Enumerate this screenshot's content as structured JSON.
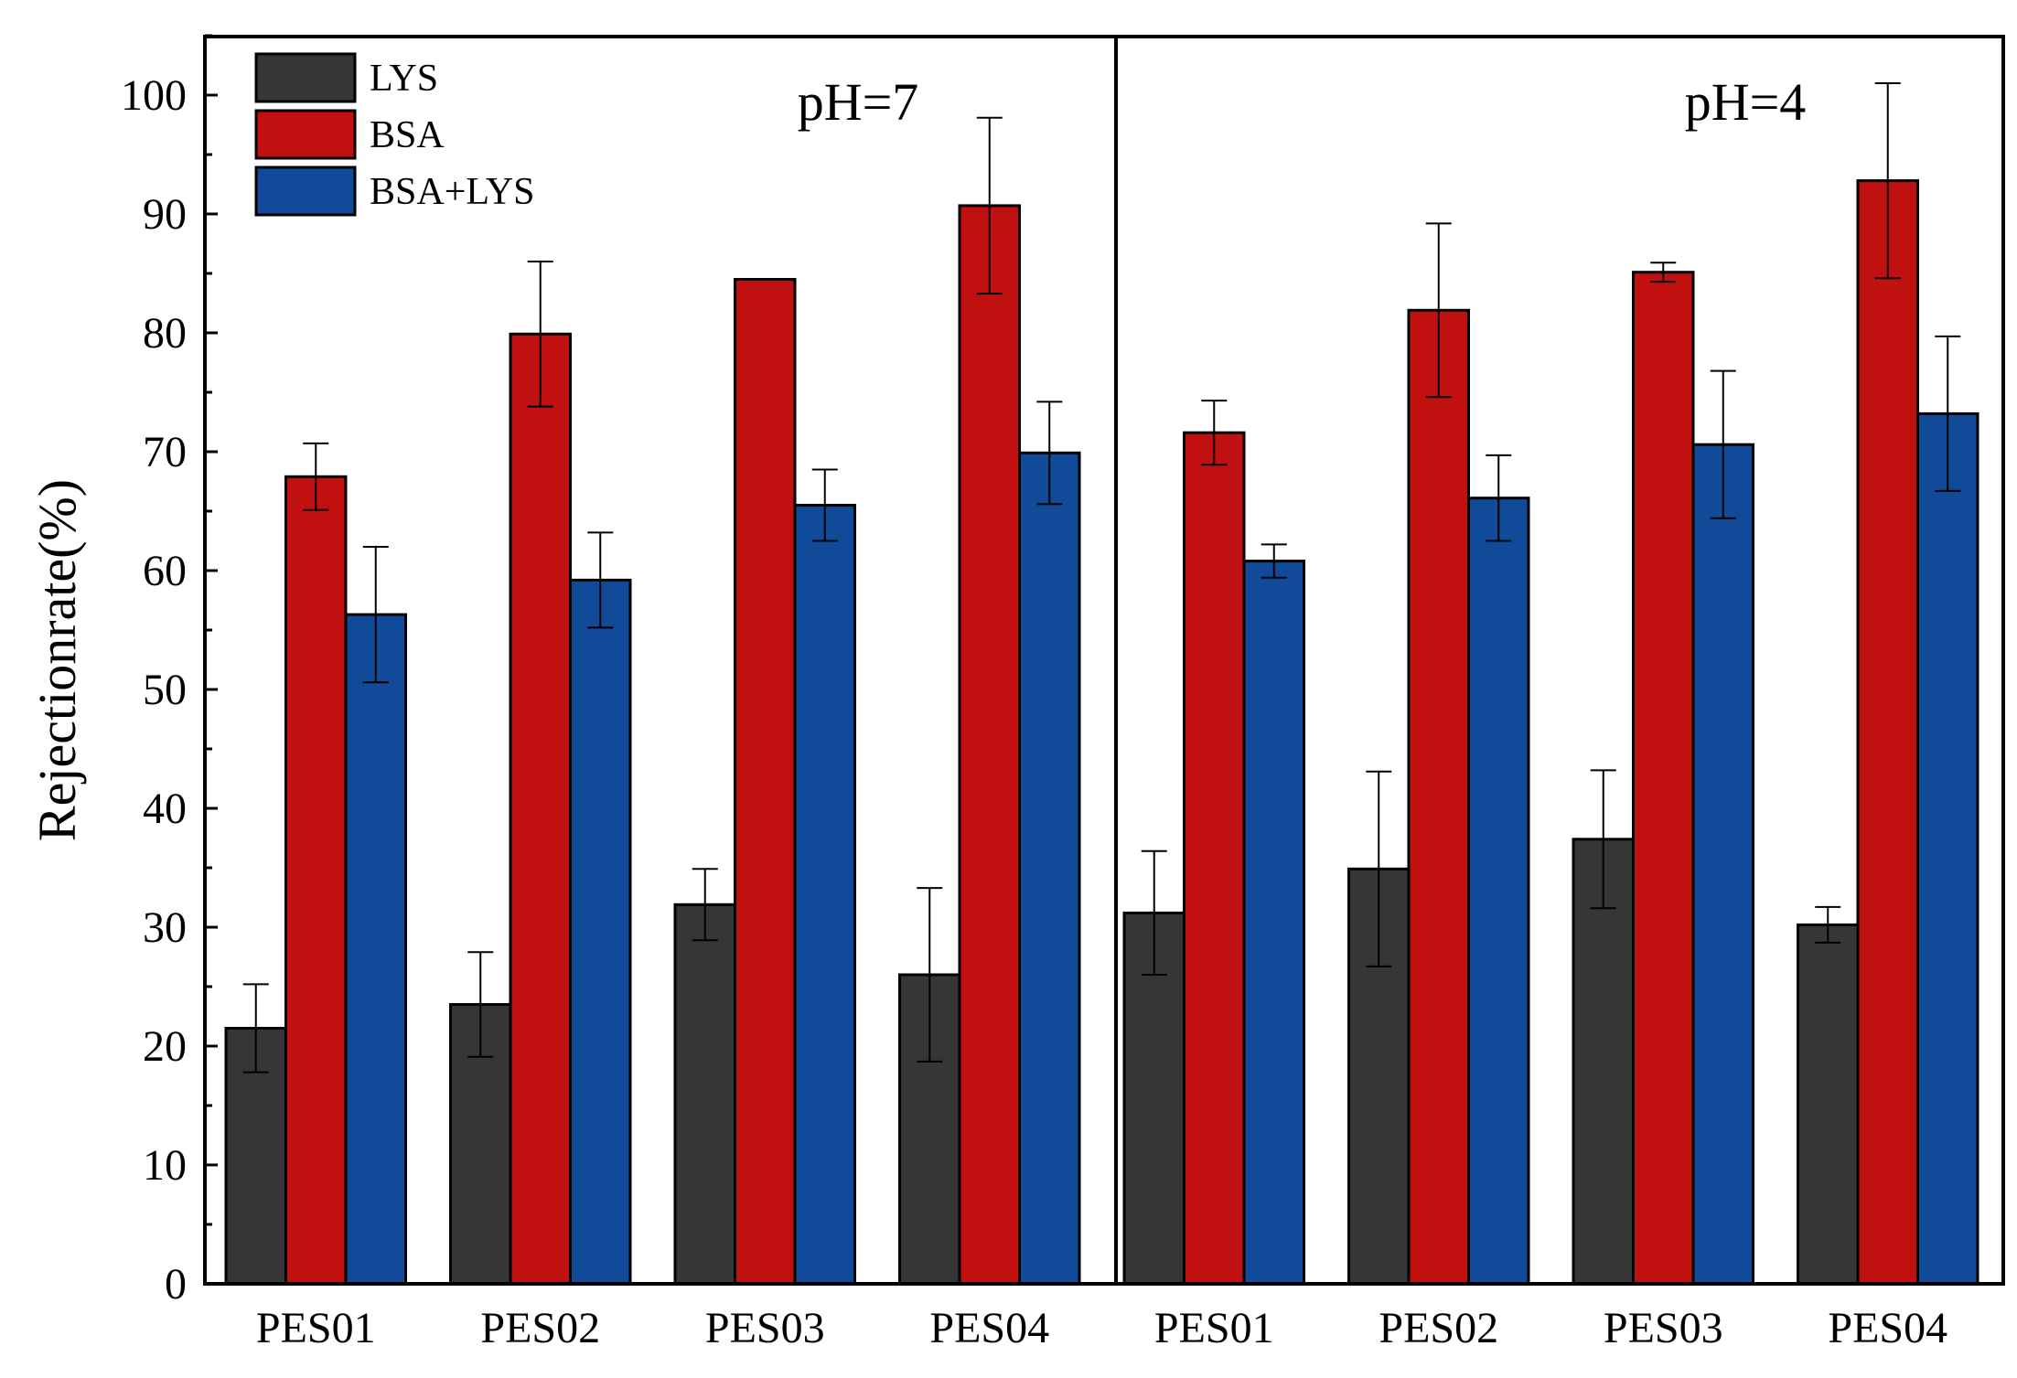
{
  "chart_data": {
    "type": "bar",
    "title": "",
    "xlabel": "",
    "ylabel": "Rejectionrate(%)",
    "ylim": [
      0,
      105
    ],
    "yticks": [
      "0",
      "10",
      "20",
      "30",
      "40",
      "50",
      "60",
      "70",
      "80",
      "90",
      "100"
    ],
    "categories": [
      "PES01",
      "PES02",
      "PES03",
      "PES04",
      "PES01",
      "PES02",
      "PES03",
      "PES04"
    ],
    "panels": [
      {
        "label": "pH=7",
        "categories": [
          0,
          1,
          2,
          3
        ]
      },
      {
        "label": "pH=4",
        "categories": [
          4,
          5,
          6,
          7
        ]
      }
    ],
    "legend_position": "top-left",
    "series": [
      {
        "name": "LYS",
        "color": "#363636",
        "values": [
          21.5,
          23.5,
          31.9,
          26.0,
          31.2,
          34.9,
          37.4,
          30.2
        ],
        "errors": [
          3.7,
          4.4,
          3.0,
          7.3,
          5.2,
          8.2,
          5.8,
          1.5
        ]
      },
      {
        "name": "BSA",
        "color": "#c01010",
        "values": [
          67.9,
          79.9,
          84.5,
          90.7,
          71.6,
          81.9,
          85.1,
          92.8
        ],
        "errors": [
          2.8,
          6.1,
          0.0,
          7.4,
          2.7,
          7.3,
          0.8,
          8.2
        ]
      },
      {
        "name": "BSA+LYS",
        "color": "#114a99",
        "values": [
          56.3,
          59.2,
          65.5,
          69.9,
          60.8,
          66.1,
          70.6,
          73.2
        ],
        "errors": [
          5.7,
          4.0,
          3.0,
          4.3,
          1.4,
          3.6,
          6.2,
          6.5
        ]
      }
    ]
  }
}
